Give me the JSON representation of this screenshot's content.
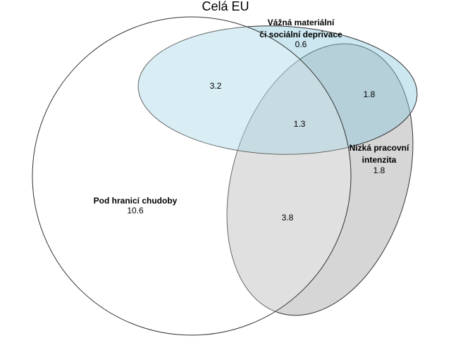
{
  "diagram": {
    "title": "Celá EU",
    "sets": {
      "poverty": {
        "label": "Pod hranicí chudoby",
        "value": "10.6",
        "color": "#ffffff"
      },
      "deprivation": {
        "label_line1": "Vážná materiální",
        "label_line2": "či sociální deprivace",
        "value": "0.6",
        "color": "#8fc9dd"
      },
      "work": {
        "label_line1": "Nízká pracovní",
        "label_line2": "intenzita",
        "value": "1.8",
        "color": "#c8c8c8"
      }
    },
    "overlaps": {
      "poverty_deprivation": "3.2",
      "deprivation_work": "1.8",
      "all_three": "1.3",
      "poverty_work": "3.8"
    }
  }
}
